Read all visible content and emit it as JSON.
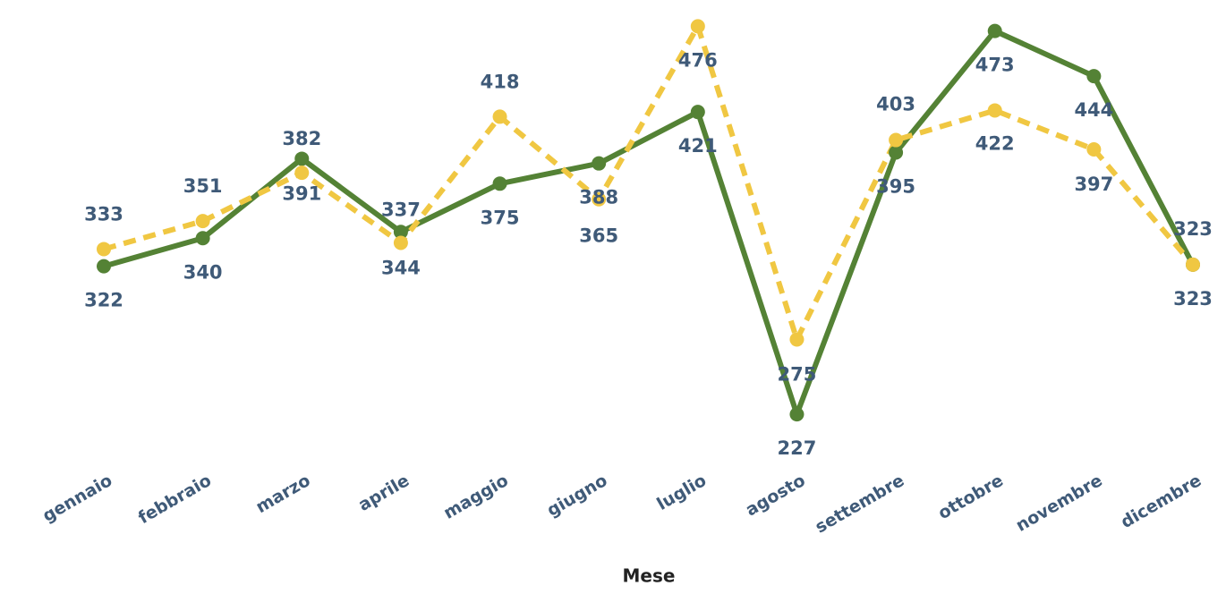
{
  "chart_data": {
    "type": "line",
    "x_label": "Mese",
    "categories": [
      "gennaio",
      "febbraio",
      "marzo",
      "aprile",
      "maggio",
      "giugno",
      "luglio",
      "agosto",
      "settembre",
      "ottobre",
      "novembre",
      "dicembre"
    ],
    "series": [
      {
        "color": "#548235",
        "dash": false,
        "values": [
          322,
          340,
          391,
          344,
          375,
          388,
          421,
          227,
          395,
          473,
          444,
          323
        ]
      },
      {
        "color": "#f0c742",
        "dash": true,
        "values": [
          333,
          351,
          382,
          337,
          418,
          365,
          476,
          275,
          403,
          422,
          397,
          323
        ]
      }
    ],
    "ylim": [
      215,
      490
    ]
  }
}
